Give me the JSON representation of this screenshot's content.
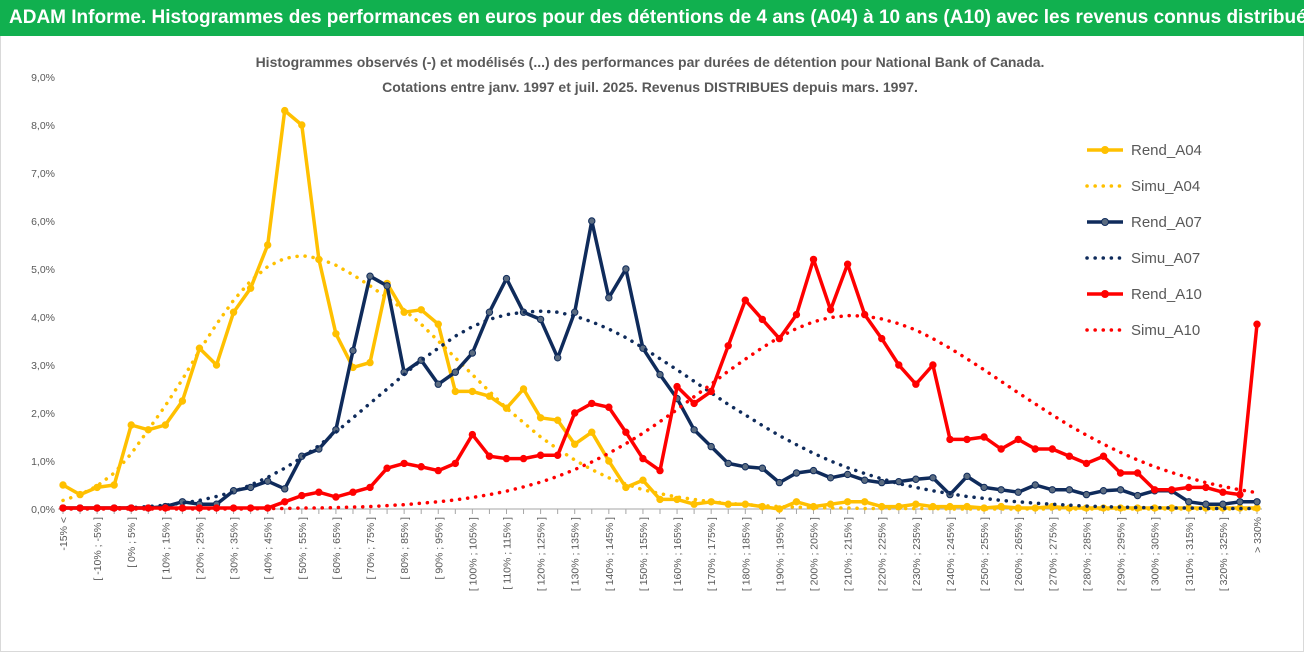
{
  "header": {
    "title": "ADAM Informe. Histogrammes des performances en euros pour des détentions de 4 ans (A04) à 10 ans (A10) avec les revenus connus distribués",
    "bg_color": "#11b04f"
  },
  "chart_data": {
    "type": "line",
    "title": "Histogrammes observés (-) et modélisés (...) des performances par durées de détention pour National Bank of Canada.",
    "subtitle": "Cotations entre janv. 1997 et juil. 2025. Revenus DISTRIBUES depuis mars. 1997.",
    "xlabel": "",
    "ylabel": "",
    "ylim": [
      0,
      9
    ],
    "yticks": [
      "0,0%",
      "1,0%",
      "2,0%",
      "3,0%",
      "4,0%",
      "5,0%",
      "6,0%",
      "7,0%",
      "8,0%",
      "9,0%"
    ],
    "grid": false,
    "legend_position": "right",
    "categories": [
      "-15% <",
      "[ -15% ; -10% ]",
      "[ -10% ; -5% ]",
      "[ -5% ; 0% ]",
      "[ 0% ; 5% ]",
      "[ 5% ; 10% ]",
      "[ 10% ; 15% ]",
      "[ 15% ; 20% ]",
      "[ 20% ; 25% ]",
      "[ 25% ; 30% ]",
      "[ 30% ; 35% ]",
      "[ 35% ; 40% ]",
      "[ 40% ; 45% ]",
      "[ 45% ; 50% ]",
      "[ 50% ; 55% ]",
      "[ 55% ; 60% ]",
      "[ 60% ; 65% ]",
      "[ 65% ; 70% ]",
      "[ 70% ; 75% ]",
      "[ 75% ; 80% ]",
      "[ 80% ; 85% ]",
      "[ 85% ; 90% ]",
      "[ 90% ; 95% ]",
      "[ 95% ; 100% ]",
      "[ 100% ; 105% ]",
      "[ 105% ; 110% ]",
      "[ 110% ; 115% ]",
      "[ 115% ; 120% ]",
      "[ 120% ; 125% ]",
      "[ 125% ; 130% ]",
      "[ 130% ; 135% ]",
      "[ 135% ; 140% ]",
      "[ 140% ; 145% ]",
      "[ 145% ; 150% ]",
      "[ 150% ; 155% ]",
      "[ 155% ; 160% ]",
      "[ 160% ; 165% ]",
      "[ 165% ; 170% ]",
      "[ 170% ; 175% ]",
      "[ 175% ; 180% ]",
      "[ 180% ; 185% ]",
      "[ 185% ; 190% ]",
      "[ 190% ; 195% ]",
      "[ 195% ; 200% ]",
      "[ 200% ; 205% ]",
      "[ 205% ; 210% ]",
      "[ 210% ; 215% ]",
      "[ 215% ; 220% ]",
      "[ 220% ; 225% ]",
      "[ 225% ; 230% ]",
      "[ 230% ; 235% ]",
      "[ 235% ; 240% ]",
      "[ 240% ; 245% ]",
      "[ 245% ; 250% ]",
      "[ 250% ; 255% ]",
      "[ 255% ; 260% ]",
      "[ 260% ; 265% ]",
      "[ 265% ; 270% ]",
      "[ 270% ; 275% ]",
      "[ 275% ; 280% ]",
      "[ 280% ; 285% ]",
      "[ 285% ; 290% ]",
      "[ 290% ; 295% ]",
      "[ 295% ; 300% ]",
      "[ 300% ; 305% ]",
      "[ 305% ; 310% ]",
      "[ 310% ; 315% ]",
      "[ 315% ; 320% ]",
      "[ 320% ; 325% ]",
      "[ 325% ; 330% ]",
      "> 330%"
    ],
    "series": [
      {
        "name": "Rend_A04",
        "style": "solid",
        "markers": true,
        "color": "#ffc000",
        "values": [
          0.5,
          0.3,
          0.45,
          0.5,
          1.75,
          1.65,
          1.75,
          2.25,
          3.35,
          3.0,
          4.1,
          4.6,
          5.5,
          8.3,
          8.0,
          5.2,
          3.65,
          2.95,
          3.05,
          4.7,
          4.1,
          4.15,
          3.85,
          2.45,
          2.45,
          2.35,
          2.1,
          2.5,
          1.9,
          1.85,
          1.35,
          1.6,
          1.0,
          0.45,
          0.6,
          0.2,
          0.2,
          0.1,
          0.15,
          0.1,
          0.1,
          0.05,
          0.0,
          0.15,
          0.05,
          0.1,
          0.15,
          0.15,
          0.05,
          0.05,
          0.1,
          0.05,
          0.05,
          0.05,
          0.02,
          0.05,
          0.02,
          0.02,
          0.05,
          0.02,
          0.02,
          0.02,
          0.02,
          0.02,
          0.02,
          0.02,
          0.02,
          0.02,
          0.02,
          0.02,
          0.02
        ]
      },
      {
        "name": "Simu_A04",
        "style": "dotted",
        "markers": false,
        "color": "#ffc000",
        "values": [
          0.18,
          0.3,
          0.48,
          0.75,
          1.15,
          1.65,
          2.15,
          2.7,
          3.3,
          3.85,
          4.35,
          4.75,
          5.05,
          5.22,
          5.28,
          5.22,
          5.08,
          4.88,
          4.65,
          4.4,
          4.15,
          3.85,
          3.5,
          3.15,
          2.8,
          2.45,
          2.1,
          1.8,
          1.5,
          1.25,
          1.02,
          0.82,
          0.65,
          0.52,
          0.4,
          0.32,
          0.25,
          0.2,
          0.15,
          0.12,
          0.09,
          0.07,
          0.05,
          0.04,
          0.03,
          0.02,
          0.02,
          0.01,
          0.01,
          0.01,
          0.01,
          0.01,
          0.0,
          0.0,
          0.0,
          0.0,
          0.0,
          0.0,
          0.0,
          0.0,
          0.0,
          0.0,
          0.0,
          0.0,
          0.0,
          0.0,
          0.0,
          0.0,
          0.0,
          0.0,
          0.0
        ]
      },
      {
        "name": "Rend_A07",
        "style": "solid",
        "markers": true,
        "color": "#0f2b5b",
        "values": [
          0.02,
          0.02,
          0.02,
          0.02,
          0.02,
          0.02,
          0.05,
          0.15,
          0.1,
          0.1,
          0.38,
          0.45,
          0.58,
          0.42,
          1.1,
          1.25,
          1.65,
          3.3,
          4.85,
          4.65,
          2.85,
          3.1,
          2.6,
          2.85,
          3.25,
          4.1,
          4.8,
          4.1,
          3.95,
          3.15,
          4.1,
          6.0,
          4.4,
          5.0,
          3.35,
          2.8,
          2.3,
          1.65,
          1.3,
          0.95,
          0.88,
          0.85,
          0.55,
          0.75,
          0.8,
          0.65,
          0.72,
          0.6,
          0.55,
          0.57,
          0.62,
          0.65,
          0.3,
          0.68,
          0.45,
          0.4,
          0.35,
          0.5,
          0.4,
          0.4,
          0.3,
          0.38,
          0.4,
          0.28,
          0.38,
          0.38,
          0.15,
          0.1,
          0.1,
          0.15,
          0.15
        ]
      },
      {
        "name": "Simu_A07",
        "style": "dotted",
        "markers": false,
        "color": "#0f2b5b",
        "values": [
          0.0,
          0.01,
          0.01,
          0.02,
          0.03,
          0.05,
          0.08,
          0.12,
          0.18,
          0.26,
          0.36,
          0.5,
          0.66,
          0.85,
          1.07,
          1.32,
          1.6,
          1.9,
          2.2,
          2.5,
          2.8,
          3.1,
          3.35,
          3.6,
          3.8,
          3.95,
          4.05,
          4.1,
          4.12,
          4.1,
          4.02,
          3.9,
          3.75,
          3.57,
          3.36,
          3.13,
          2.9,
          2.66,
          2.42,
          2.18,
          1.96,
          1.74,
          1.53,
          1.34,
          1.16,
          1.0,
          0.86,
          0.74,
          0.63,
          0.53,
          0.45,
          0.38,
          0.32,
          0.26,
          0.22,
          0.18,
          0.15,
          0.12,
          0.1,
          0.08,
          0.06,
          0.05,
          0.04,
          0.03,
          0.03,
          0.02,
          0.02,
          0.01,
          0.01,
          0.01,
          0.01
        ]
      },
      {
        "name": "Rend_A10",
        "style": "solid",
        "markers": true,
        "color": "#ff0000",
        "values": [
          0.02,
          0.02,
          0.02,
          0.02,
          0.02,
          0.02,
          0.02,
          0.02,
          0.02,
          0.02,
          0.02,
          0.02,
          0.02,
          0.15,
          0.28,
          0.35,
          0.25,
          0.35,
          0.45,
          0.85,
          0.95,
          0.88,
          0.8,
          0.95,
          1.55,
          1.1,
          1.05,
          1.05,
          1.12,
          1.12,
          2.0,
          2.2,
          2.12,
          1.6,
          1.05,
          0.8,
          2.55,
          2.2,
          2.45,
          3.4,
          4.35,
          3.95,
          3.55,
          4.05,
          5.2,
          4.15,
          5.1,
          4.05,
          3.55,
          3.0,
          2.6,
          3.0,
          1.45,
          1.45,
          1.5,
          1.25,
          1.45,
          1.25,
          1.25,
          1.1,
          0.95,
          1.1,
          0.75,
          0.75,
          0.4,
          0.4,
          0.45,
          0.45,
          0.35,
          0.3,
          3.85
        ]
      },
      {
        "name": "Simu_A10",
        "style": "dotted",
        "markers": false,
        "color": "#ff0000",
        "values": [
          0.0,
          0.0,
          0.0,
          0.0,
          0.0,
          0.0,
          0.0,
          0.0,
          0.0,
          0.0,
          0.0,
          0.0,
          0.01,
          0.01,
          0.02,
          0.02,
          0.03,
          0.04,
          0.05,
          0.07,
          0.09,
          0.12,
          0.15,
          0.19,
          0.24,
          0.3,
          0.37,
          0.46,
          0.56,
          0.68,
          0.82,
          0.98,
          1.16,
          1.36,
          1.58,
          1.82,
          2.07,
          2.34,
          2.6,
          2.87,
          3.12,
          3.36,
          3.58,
          3.76,
          3.9,
          3.99,
          4.03,
          4.02,
          3.96,
          3.86,
          3.73,
          3.55,
          3.35,
          3.13,
          2.9,
          2.66,
          2.42,
          2.19,
          1.96,
          1.74,
          1.54,
          1.35,
          1.18,
          1.02,
          0.88,
          0.76,
          0.65,
          0.55,
          0.47,
          0.4,
          0.34
        ]
      }
    ]
  }
}
